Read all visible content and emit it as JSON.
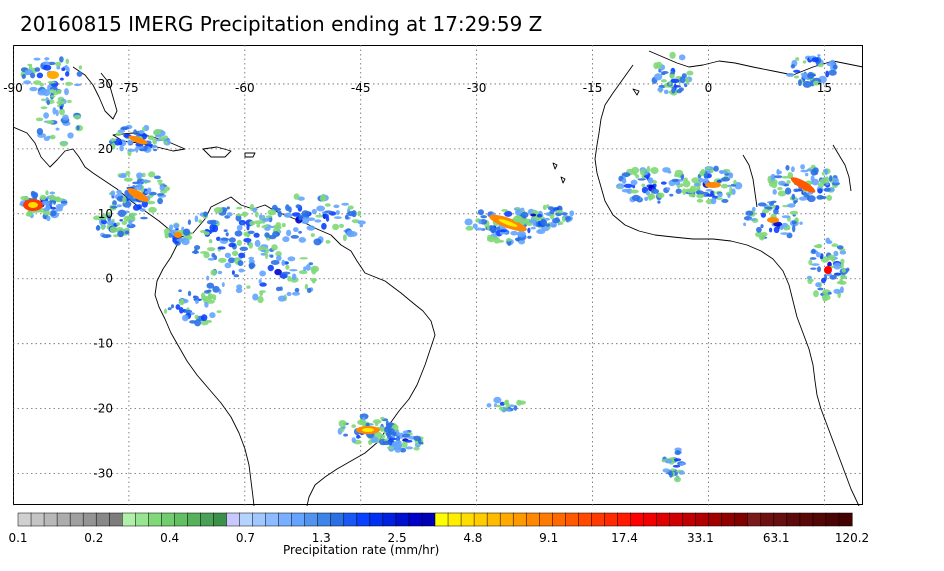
{
  "title": "20160815 IMERG Precipitation ending at 17:29:59 Z",
  "map": {
    "lon_labels": [
      "-90",
      "-75",
      "-60",
      "-45",
      "-30",
      "-15",
      "0",
      "15"
    ],
    "lat_labels": [
      "30",
      "20",
      "10",
      "0",
      "-10",
      "-20",
      "-30"
    ],
    "lon_values": [
      -90,
      -75,
      -60,
      -45,
      -30,
      -15,
      0,
      15
    ],
    "lat_values": [
      30,
      20,
      10,
      0,
      -10,
      -20,
      -30
    ],
    "extent": {
      "lon_min": -90,
      "lon_max": 20,
      "lat_min": -35,
      "lat_max": 36
    }
  },
  "colorbar": {
    "tick_labels": [
      "0.1",
      "0.2",
      "0.4",
      "0.7",
      "1.3",
      "2.5",
      "4.8",
      "9.1",
      "17.4",
      "33.1",
      "63.1",
      "120.2"
    ],
    "label": "Precipitation rate (mm/hr)",
    "colors": [
      "#d0d0d0",
      "#c4c4c4",
      "#b8b8b8",
      "#acacac",
      "#a0a0a0",
      "#949494",
      "#888888",
      "#7c7c7c",
      "#b0f0a8",
      "#98e490",
      "#80d878",
      "#70cc6c",
      "#62c062",
      "#56b05c",
      "#4aa056",
      "#3c9048",
      "#c8c8ff",
      "#b4d4ff",
      "#a0c8ff",
      "#8cbcff",
      "#78b0ff",
      "#64a4ff",
      "#5094f0",
      "#3c84e8",
      "#2a70e4",
      "#1a58f4",
      "#0a40ff",
      "#0030f0",
      "#0020e0",
      "#0010d0",
      "#0000c8",
      "#0000b4",
      "#ffff00",
      "#ffee00",
      "#ffdd00",
      "#ffcc00",
      "#ffbb00",
      "#ffaa00",
      "#ff9900",
      "#ff8800",
      "#ff7a00",
      "#ff6a00",
      "#ff5a00",
      "#ff4a00",
      "#ff3a00",
      "#ff2a00",
      "#ff1a00",
      "#ff0000",
      "#f00000",
      "#e00000",
      "#d00000",
      "#c00000",
      "#b00000",
      "#a00000",
      "#900000",
      "#800000",
      "#7a1a1a",
      "#6e1010",
      "#661010",
      "#5e0a0a",
      "#5a0808",
      "#520606",
      "#4a0404",
      "#420202"
    ]
  }
}
